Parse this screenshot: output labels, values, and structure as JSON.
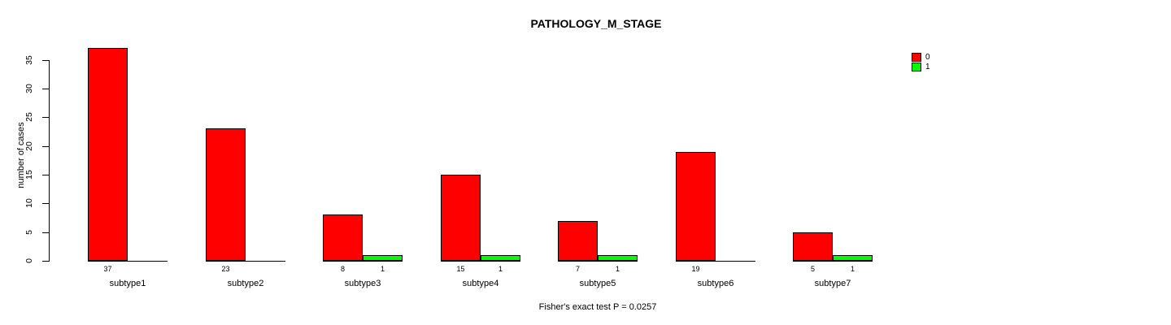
{
  "chart_data": {
    "type": "bar",
    "title": "PATHOLOGY_M_STAGE",
    "ylabel": "number of cases",
    "xlabel": "",
    "categories": [
      "subtype1",
      "subtype2",
      "subtype3",
      "subtype4",
      "subtype5",
      "subtype6",
      "subtype7"
    ],
    "series": [
      {
        "name": "0",
        "color": "#ff0000",
        "values": [
          37,
          23,
          8,
          15,
          7,
          19,
          5
        ]
      },
      {
        "name": "1",
        "color": "#00ff00",
        "values": [
          0,
          0,
          1,
          1,
          1,
          0,
          1
        ]
      }
    ],
    "bar_value_labels": {
      "0": [
        "37",
        "23",
        "8",
        "15",
        "7",
        "19",
        "5"
      ],
      "1": [
        "",
        "",
        "1",
        "1",
        "1",
        "",
        "1"
      ]
    },
    "yticks": [
      0,
      5,
      10,
      15,
      20,
      25,
      30,
      35
    ],
    "ylim": [
      0,
      35
    ],
    "grid": false,
    "legend": {
      "position": "top-right",
      "entries": [
        {
          "label": "0",
          "color": "#ff0000"
        },
        {
          "label": "1",
          "color": "#00ff00"
        }
      ]
    },
    "annotation": "Fisher's exact test P = 0.0257",
    "colors": {
      "background": "#ffffff",
      "axis": "#000000",
      "text": "#000000"
    }
  }
}
